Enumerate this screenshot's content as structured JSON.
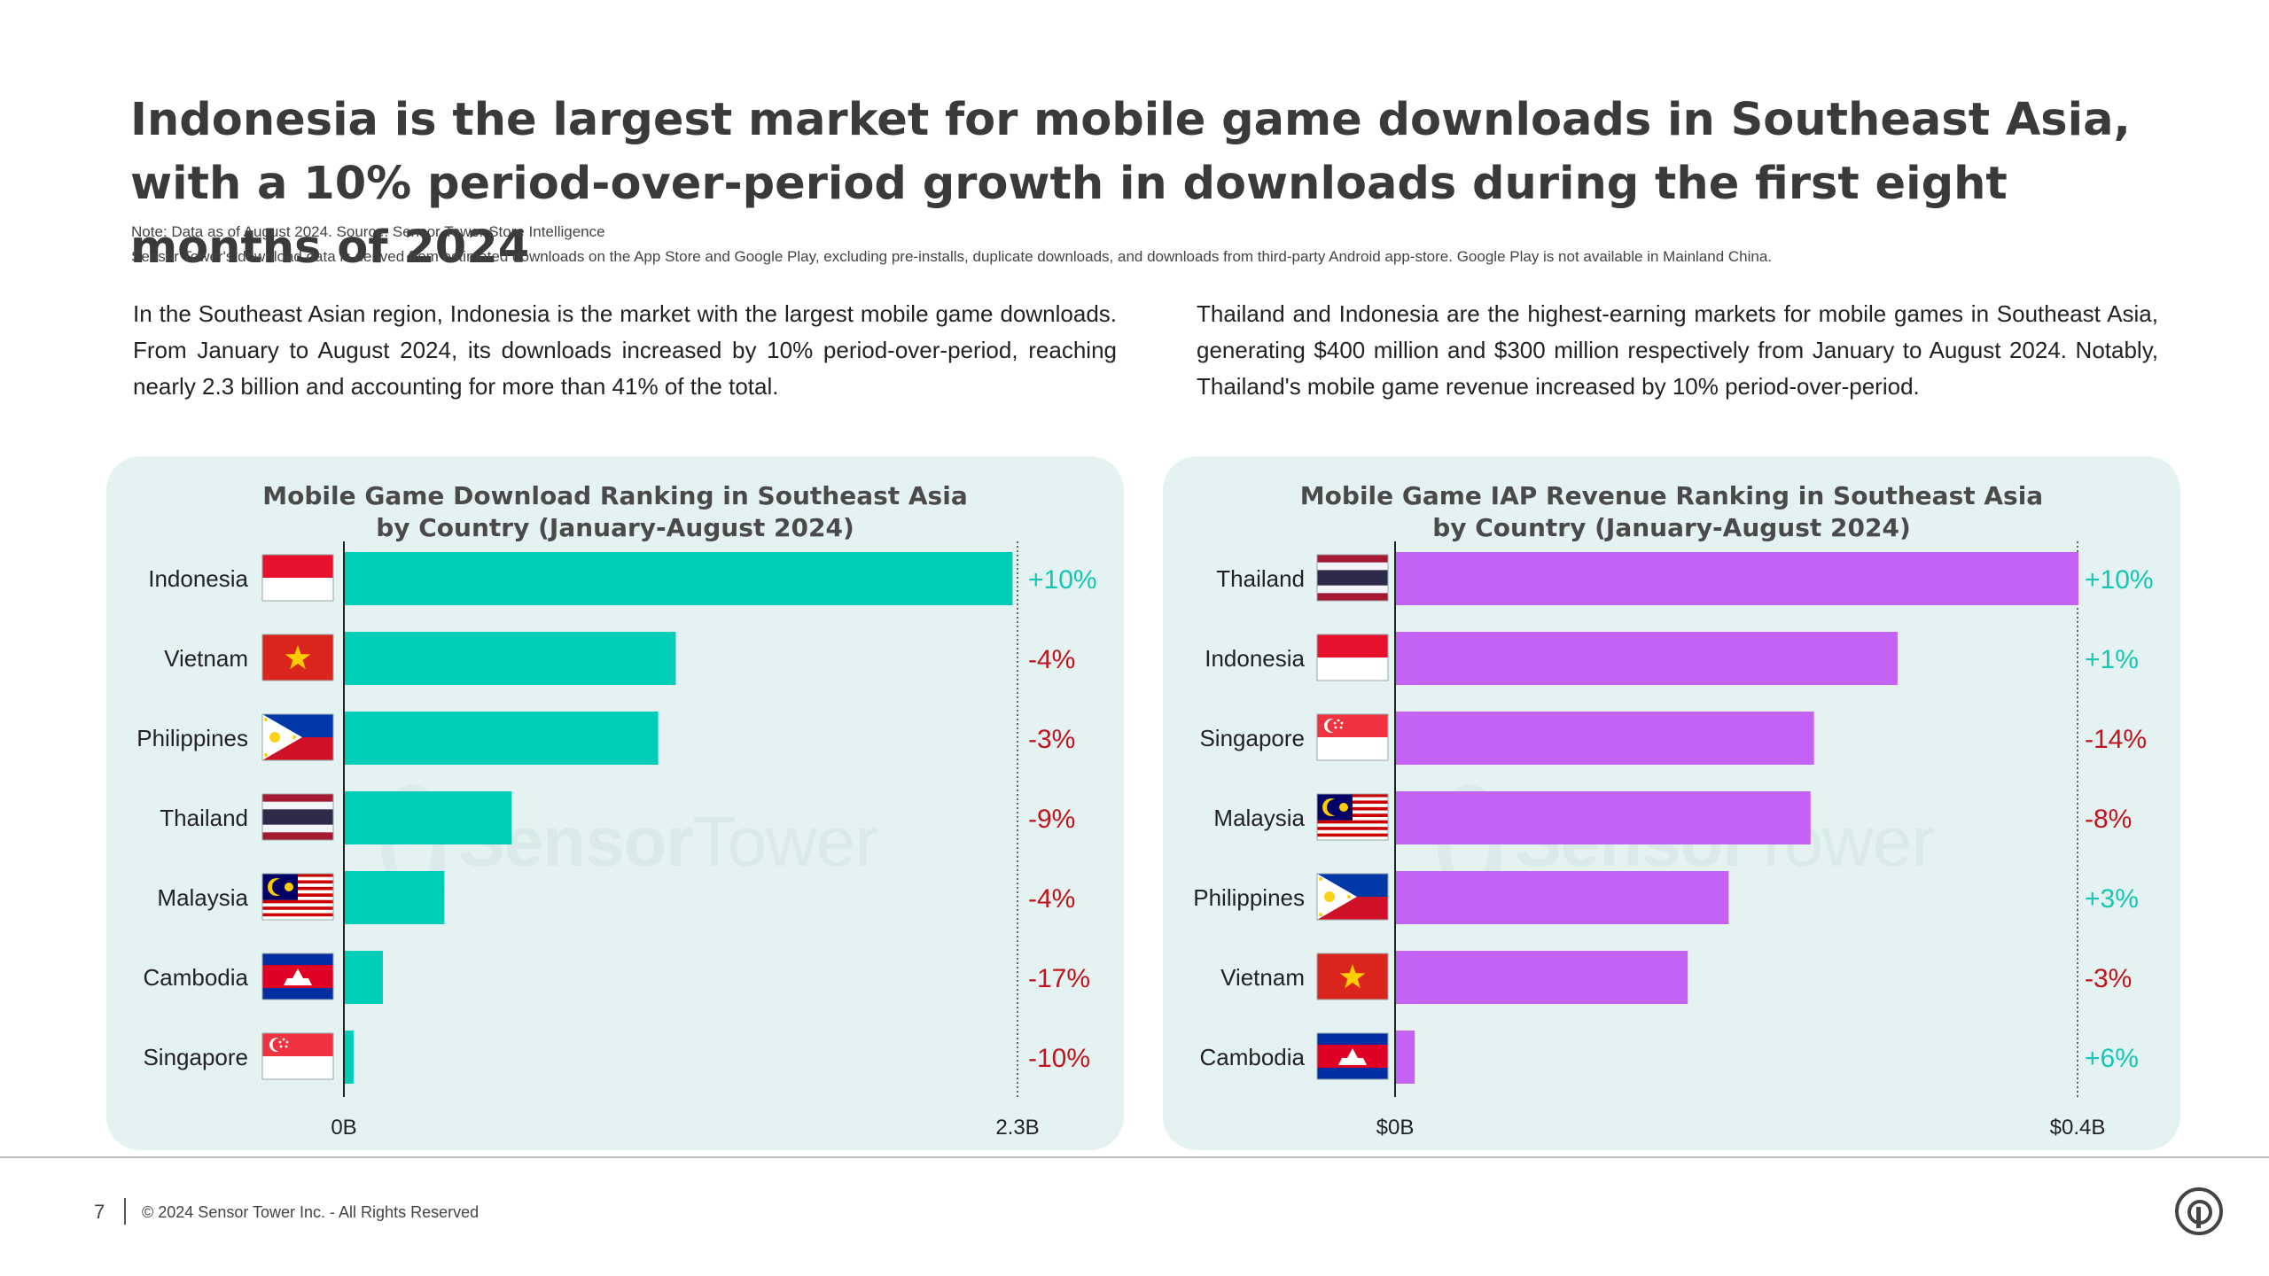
{
  "headline": "Indonesia is the largest market for mobile game downloads in Southeast Asia, with a 10% period-over-period growth in downloads during the first eight months of 2024",
  "notes": {
    "line1": "Note: Data as of August 2024. Source: Sensor Tower Store Intelligence",
    "line2": "Sensor Tower's download data is derived from estimated downloads on the App Store and Google Play, excluding pre-installs, duplicate downloads, and downloads from third-party Android app-store. Google Play is not available in Mainland China."
  },
  "paragraphs": {
    "left": "In the Southeast Asian region, Indonesia is the market with the largest mobile game downloads. From January to August 2024, its downloads increased by 10% period-over-period, reaching nearly 2.3 billion and accounting for more than 41% of the total.",
    "right": "Thailand and Indonesia are the highest-earning markets for mobile games in Southeast Asia, generating $400 million and $300 million respectively from January to August 2024. Notably, Thailand's mobile game revenue increased by 10% period-over-period."
  },
  "watermark": {
    "bold": "Sensor",
    "thin": "Tower"
  },
  "colors": {
    "teal": "#00cdb8",
    "purple": "#c462f6",
    "positive": "#14c7b4",
    "negative": "#c0141c"
  },
  "chart_data": [
    {
      "type": "bar",
      "orientation": "horizontal",
      "title_line1": "Mobile Game Download Ranking in Southeast Asia",
      "title_line2": "by Country (January-August 2024)",
      "categories": [
        "Indonesia",
        "Vietnam",
        "Philippines",
        "Thailand",
        "Malaysia",
        "Cambodia",
        "Singapore"
      ],
      "flags": [
        "indonesia",
        "vietnam",
        "philippines",
        "thailand",
        "malaysia",
        "cambodia",
        "singapore"
      ],
      "values": [
        2.28,
        1.13,
        1.07,
        0.57,
        0.34,
        0.13,
        0.03
      ],
      "changes": [
        "+10%",
        "-4%",
        "-3%",
        "-9%",
        "-4%",
        "-17%",
        "-10%"
      ],
      "unit": "B",
      "xlim": [
        0,
        2.3
      ],
      "xtick_labels": [
        "0B",
        "2.3B"
      ],
      "bar_color": "#00cdb8"
    },
    {
      "type": "bar",
      "orientation": "horizontal",
      "title_line1": "Mobile Game IAP Revenue Ranking in Southeast Asia",
      "title_line2": "by Country (January-August 2024)",
      "categories": [
        "Thailand",
        "Indonesia",
        "Singapore",
        "Malaysia",
        "Philippines",
        "Vietnam",
        "Cambodia"
      ],
      "flags": [
        "thailand",
        "indonesia",
        "singapore",
        "malaysia",
        "philippines",
        "vietnam",
        "cambodia"
      ],
      "values": [
        0.4,
        0.294,
        0.245,
        0.243,
        0.195,
        0.171,
        0.011
      ],
      "changes": [
        "+10%",
        "+1%",
        "-14%",
        "-8%",
        "+3%",
        "-3%",
        "+6%"
      ],
      "unit": "$B",
      "xlim": [
        0,
        0.4
      ],
      "xtick_labels": [
        "$0B",
        "$0.4B"
      ],
      "bar_color": "#c462f6"
    }
  ],
  "footer": {
    "page": "7",
    "copyright": "© 2024 Sensor Tower Inc. - All Rights Reserved"
  }
}
